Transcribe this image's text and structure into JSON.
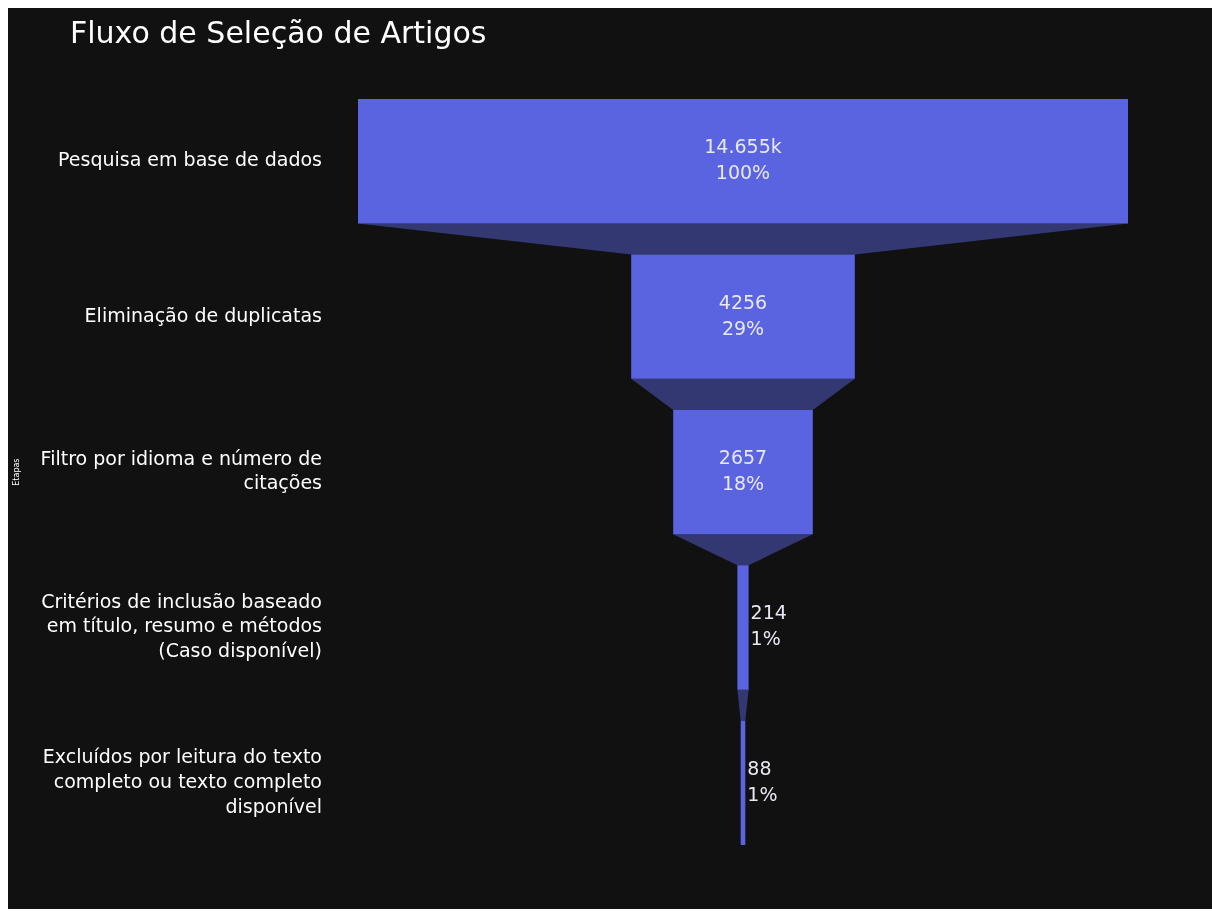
{
  "chart_data": {
    "type": "other",
    "title": "Fluxo de Seleção de Artigos",
    "ylabel": "Etapas",
    "categories": [
      "Pesquisa em base de dados",
      "Eliminação de duplicatas",
      "Filtro por idioma e número de citações",
      "Critérios de inclusão baseado em título, resumo e métodos (Caso disponível)",
      "Excluídos por leitura do texto completo ou texto completo disponível"
    ],
    "values": [
      14655,
      4256,
      2657,
      214,
      88
    ],
    "value_labels": [
      "14.655k\n100%",
      "4256\n29%",
      "2657\n18%",
      "214\n1%",
      "88\n1%"
    ],
    "color": "#5a64e0"
  }
}
